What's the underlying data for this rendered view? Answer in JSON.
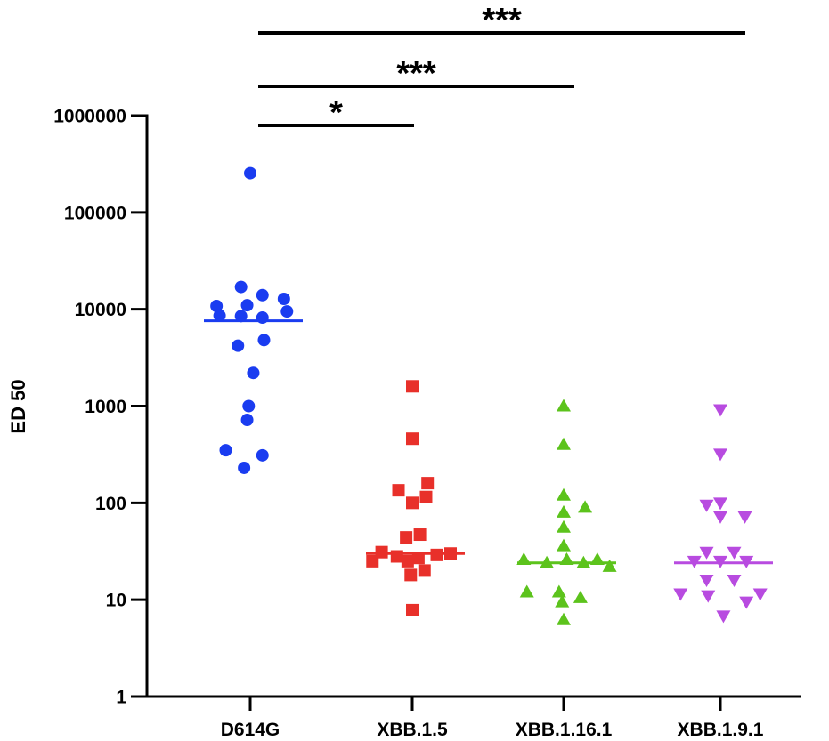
{
  "chart_data": {
    "type": "scatter",
    "title": "",
    "xlabel": "",
    "ylabel": "ED 50",
    "yscale": "log",
    "ylim": [
      1,
      1000000
    ],
    "y_ticks": [
      {
        "value": 1,
        "label": "1"
      },
      {
        "value": 10,
        "label": "10"
      },
      {
        "value": 100,
        "label": "100"
      },
      {
        "value": 1000,
        "label": "1000"
      },
      {
        "value": 10000,
        "label": "10000"
      },
      {
        "value": 100000,
        "label": "100000"
      },
      {
        "value": 1000000,
        "label": "1000000"
      }
    ],
    "grid": false,
    "categories": [
      "D614G",
      "XBB.1.5",
      "XBB.1.16.1",
      "XBB.1.9.1"
    ],
    "series": [
      {
        "category": "D614G",
        "marker": "circle",
        "color": "#1a3cf0",
        "median": 7600,
        "points": [
          {
            "offset": 0.0,
            "value": 255000
          },
          {
            "offset": -0.06,
            "value": 17000
          },
          {
            "offset": 0.08,
            "value": 14000
          },
          {
            "offset": 0.22,
            "value": 12800
          },
          {
            "offset": -0.22,
            "value": 10800
          },
          {
            "offset": -0.02,
            "value": 11000
          },
          {
            "offset": 0.24,
            "value": 9500
          },
          {
            "offset": -0.2,
            "value": 8600
          },
          {
            "offset": -0.06,
            "value": 8500
          },
          {
            "offset": 0.08,
            "value": 8200
          },
          {
            "offset": -0.08,
            "value": 4200
          },
          {
            "offset": 0.09,
            "value": 4800
          },
          {
            "offset": 0.02,
            "value": 2200
          },
          {
            "offset": -0.01,
            "value": 1000
          },
          {
            "offset": -0.02,
            "value": 720
          },
          {
            "offset": -0.16,
            "value": 350
          },
          {
            "offset": 0.08,
            "value": 310
          },
          {
            "offset": -0.04,
            "value": 230
          }
        ]
      },
      {
        "category": "XBB.1.5",
        "marker": "square",
        "color": "#e8302a",
        "median": 30,
        "points": [
          {
            "offset": 0.0,
            "value": 1600
          },
          {
            "offset": 0.0,
            "value": 460
          },
          {
            "offset": 0.1,
            "value": 160
          },
          {
            "offset": -0.09,
            "value": 135
          },
          {
            "offset": 0.09,
            "value": 115
          },
          {
            "offset": 0.0,
            "value": 100
          },
          {
            "offset": 0.05,
            "value": 47
          },
          {
            "offset": -0.04,
            "value": 44
          },
          {
            "offset": -0.2,
            "value": 31
          },
          {
            "offset": 0.25,
            "value": 30
          },
          {
            "offset": 0.16,
            "value": 29
          },
          {
            "offset": -0.1,
            "value": 28
          },
          {
            "offset": 0.04,
            "value": 27
          },
          {
            "offset": -0.26,
            "value": 25
          },
          {
            "offset": -0.03,
            "value": 25
          },
          {
            "offset": 0.08,
            "value": 20
          },
          {
            "offset": -0.01,
            "value": 18
          },
          {
            "offset": 0.0,
            "value": 7.8
          }
        ]
      },
      {
        "category": "XBB.1.16.1",
        "marker": "triangle-up",
        "color": "#5cc31c",
        "median": 24,
        "points": [
          {
            "offset": 0.0,
            "value": 1000
          },
          {
            "offset": 0.0,
            "value": 400
          },
          {
            "offset": 0.0,
            "value": 120
          },
          {
            "offset": 0.14,
            "value": 90
          },
          {
            "offset": 0.0,
            "value": 80
          },
          {
            "offset": 0.0,
            "value": 56
          },
          {
            "offset": 0.0,
            "value": 36
          },
          {
            "offset": -0.26,
            "value": 26
          },
          {
            "offset": 0.22,
            "value": 26
          },
          {
            "offset": 0.02,
            "value": 26
          },
          {
            "offset": -0.11,
            "value": 24
          },
          {
            "offset": 0.13,
            "value": 24
          },
          {
            "offset": 0.3,
            "value": 22
          },
          {
            "offset": -0.24,
            "value": 12
          },
          {
            "offset": -0.03,
            "value": 12
          },
          {
            "offset": 0.11,
            "value": 10.5
          },
          {
            "offset": -0.01,
            "value": 9.5
          },
          {
            "offset": 0.0,
            "value": 6.2
          }
        ]
      },
      {
        "category": "XBB.1.9.1",
        "marker": "triangle-down",
        "color": "#b84be0",
        "median": 24,
        "points": [
          {
            "offset": 0.0,
            "value": 920
          },
          {
            "offset": 0.0,
            "value": 320
          },
          {
            "offset": 0.0,
            "value": 100
          },
          {
            "offset": -0.09,
            "value": 95
          },
          {
            "offset": 0.0,
            "value": 72
          },
          {
            "offset": 0.16,
            "value": 72
          },
          {
            "offset": -0.09,
            "value": 31
          },
          {
            "offset": 0.09,
            "value": 31
          },
          {
            "offset": -0.17,
            "value": 25
          },
          {
            "offset": 0.0,
            "value": 25
          },
          {
            "offset": 0.17,
            "value": 25
          },
          {
            "offset": -0.09,
            "value": 16
          },
          {
            "offset": 0.09,
            "value": 16
          },
          {
            "offset": -0.26,
            "value": 11.5
          },
          {
            "offset": 0.26,
            "value": 11.5
          },
          {
            "offset": -0.08,
            "value": 11
          },
          {
            "offset": 0.17,
            "value": 9.5
          },
          {
            "offset": 0.02,
            "value": 6.8
          }
        ]
      }
    ],
    "significance": [
      {
        "from": "D614G",
        "to": "XBB.1.5",
        "label": "*"
      },
      {
        "from": "D614G",
        "to": "XBB.1.16.1",
        "label": "***"
      },
      {
        "from": "D614G",
        "to": "XBB.1.9.1",
        "label": "***"
      }
    ]
  }
}
